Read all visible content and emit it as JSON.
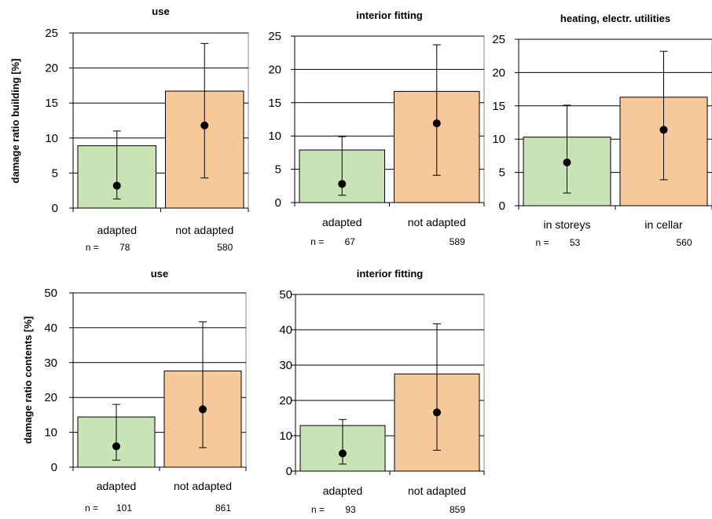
{
  "chart_data": [
    {
      "type": "bar",
      "title": "use",
      "ylabel": "damage ratio building [%]",
      "ylim": [
        0,
        25
      ],
      "yticks": [
        0,
        5,
        10,
        15,
        20,
        25
      ],
      "categories": [
        "adapted",
        "not adapted"
      ],
      "n_prefix": "n =",
      "n_values": [
        "78",
        "580"
      ],
      "bar_values": [
        8.9,
        16.7
      ],
      "point_values": [
        3.2,
        11.8
      ],
      "error_low": [
        1.3,
        4.3
      ],
      "error_high": [
        11.0,
        23.5
      ],
      "colors": [
        "#c8e4b7",
        "#f7c89a"
      ]
    },
    {
      "type": "bar",
      "title": "interior fitting",
      "ylabel": "",
      "ylim": [
        0,
        25
      ],
      "yticks": [
        0,
        5,
        10,
        15,
        20,
        25
      ],
      "categories": [
        "adapted",
        "not adapted"
      ],
      "n_prefix": "n =",
      "n_values": [
        "67",
        "589"
      ],
      "bar_values": [
        7.9,
        16.7
      ],
      "point_values": [
        2.8,
        11.9
      ],
      "error_low": [
        1.1,
        4.1
      ],
      "error_high": [
        9.9,
        23.7
      ],
      "colors": [
        "#c8e4b7",
        "#f7c89a"
      ]
    },
    {
      "type": "bar",
      "title": "heating, electr. utilities",
      "ylabel": "",
      "ylim": [
        0,
        25
      ],
      "yticks": [
        0,
        5,
        10,
        15,
        20,
        25
      ],
      "categories": [
        "in storeys",
        "in cellar"
      ],
      "n_prefix": "n =",
      "n_values": [
        "53",
        "560"
      ],
      "bar_values": [
        10.3,
        16.3
      ],
      "point_values": [
        6.5,
        11.4
      ],
      "error_low": [
        1.9,
        3.9
      ],
      "error_high": [
        15.1,
        23.2
      ],
      "colors": [
        "#c8e4b7",
        "#f7c89a"
      ]
    },
    {
      "type": "bar",
      "title": "use",
      "ylabel": "damage ratio contents [%]",
      "ylim": [
        0,
        50
      ],
      "yticks": [
        0,
        10,
        20,
        30,
        40,
        50
      ],
      "categories": [
        "adapted",
        "not adapted"
      ],
      "n_prefix": "n =",
      "n_values": [
        "101",
        "861"
      ],
      "bar_values": [
        14.4,
        27.6
      ],
      "point_values": [
        6.0,
        16.6
      ],
      "error_low": [
        2.0,
        5.6
      ],
      "error_high": [
        18.0,
        41.7
      ],
      "colors": [
        "#c8e4b7",
        "#f7c89a"
      ]
    },
    {
      "type": "bar",
      "title": "interior fitting",
      "ylabel": "",
      "ylim": [
        0,
        50
      ],
      "yticks": [
        0,
        10,
        20,
        30,
        40,
        50
      ],
      "categories": [
        "adapted",
        "not adapted"
      ],
      "n_prefix": "n =",
      "n_values": [
        "93",
        "859"
      ],
      "bar_values": [
        12.9,
        27.5
      ],
      "point_values": [
        5.0,
        16.6
      ],
      "error_low": [
        2.0,
        5.9
      ],
      "error_high": [
        14.6,
        41.7
      ],
      "colors": [
        "#c8e4b7",
        "#f7c89a"
      ]
    }
  ]
}
